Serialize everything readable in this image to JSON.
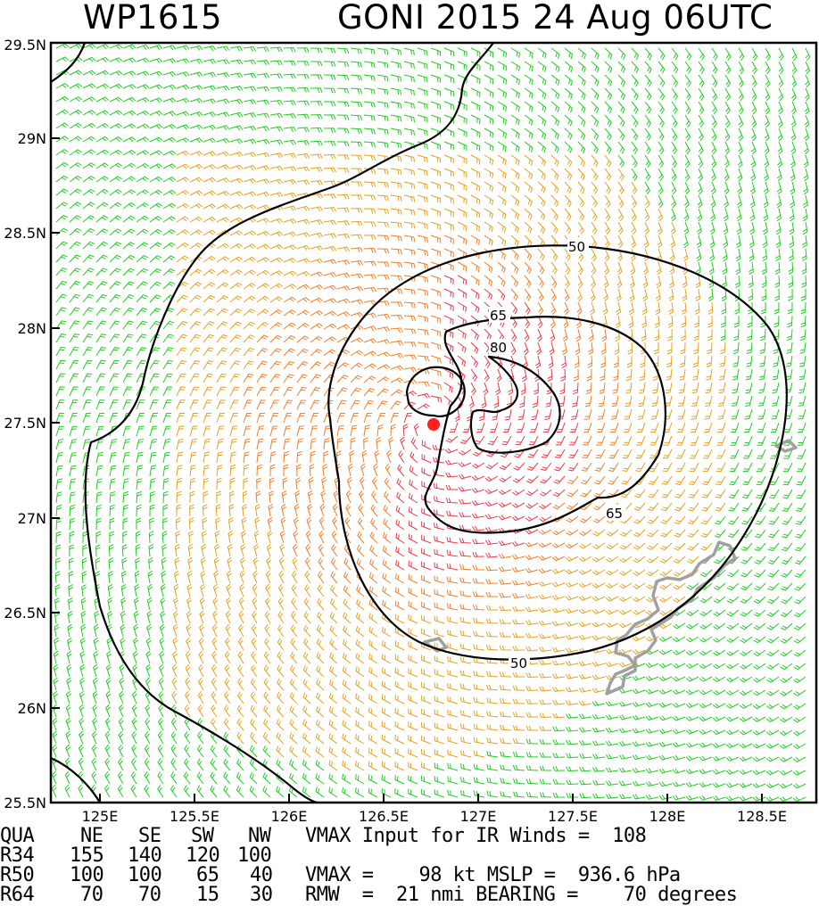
{
  "header": {
    "storm_id": "WP1615",
    "title": "GONI 2015 24 Aug 06UTC"
  },
  "map": {
    "lon_range": [
      124.7,
      128.75
    ],
    "lat_range": [
      25.5,
      29.5
    ],
    "lat_labels": [
      "25.5N",
      "26N",
      "26.5N",
      "27N",
      "27.5N",
      "28N",
      "28.5N",
      "29N",
      "29.5N"
    ],
    "lon_labels": [
      "125E",
      "125.5E",
      "126E",
      "126.5E",
      "127E",
      "127.5E",
      "128E",
      "128.5E"
    ],
    "storm_center": {
      "lon": 126.73,
      "lat": 27.5
    },
    "contour_labels": {
      "c50_top": "50",
      "c50_bottom": "50",
      "c65_top": "65",
      "c65_bottom": "65",
      "c80": "80"
    },
    "colors": {
      "barb_weak": "#22cc22",
      "barb_34": "#e6a020",
      "barb_50": "#f07e28",
      "barb_64": "#e83a48",
      "contour": "#000000",
      "coastline": "#a0a0a0",
      "center": "#ff2020"
    }
  },
  "table": {
    "header": [
      "QUA",
      "NE",
      "SE",
      "SW",
      "NW"
    ],
    "r34": [
      "R34",
      "155",
      "140",
      "120",
      "100"
    ],
    "r50": [
      "R50",
      "100",
      "100",
      "65",
      "40"
    ],
    "r64": [
      "R64",
      "70",
      "70",
      "15",
      "30"
    ],
    "vmax_input_text": "VMAX Input for IR Winds =  108",
    "vmax_mslp_text": "VMAX =    98 kt MSLP =  936.6 hPa",
    "rmw_bearing_text": "RMW  =  21 nmi BEARING =    70 degrees"
  }
}
